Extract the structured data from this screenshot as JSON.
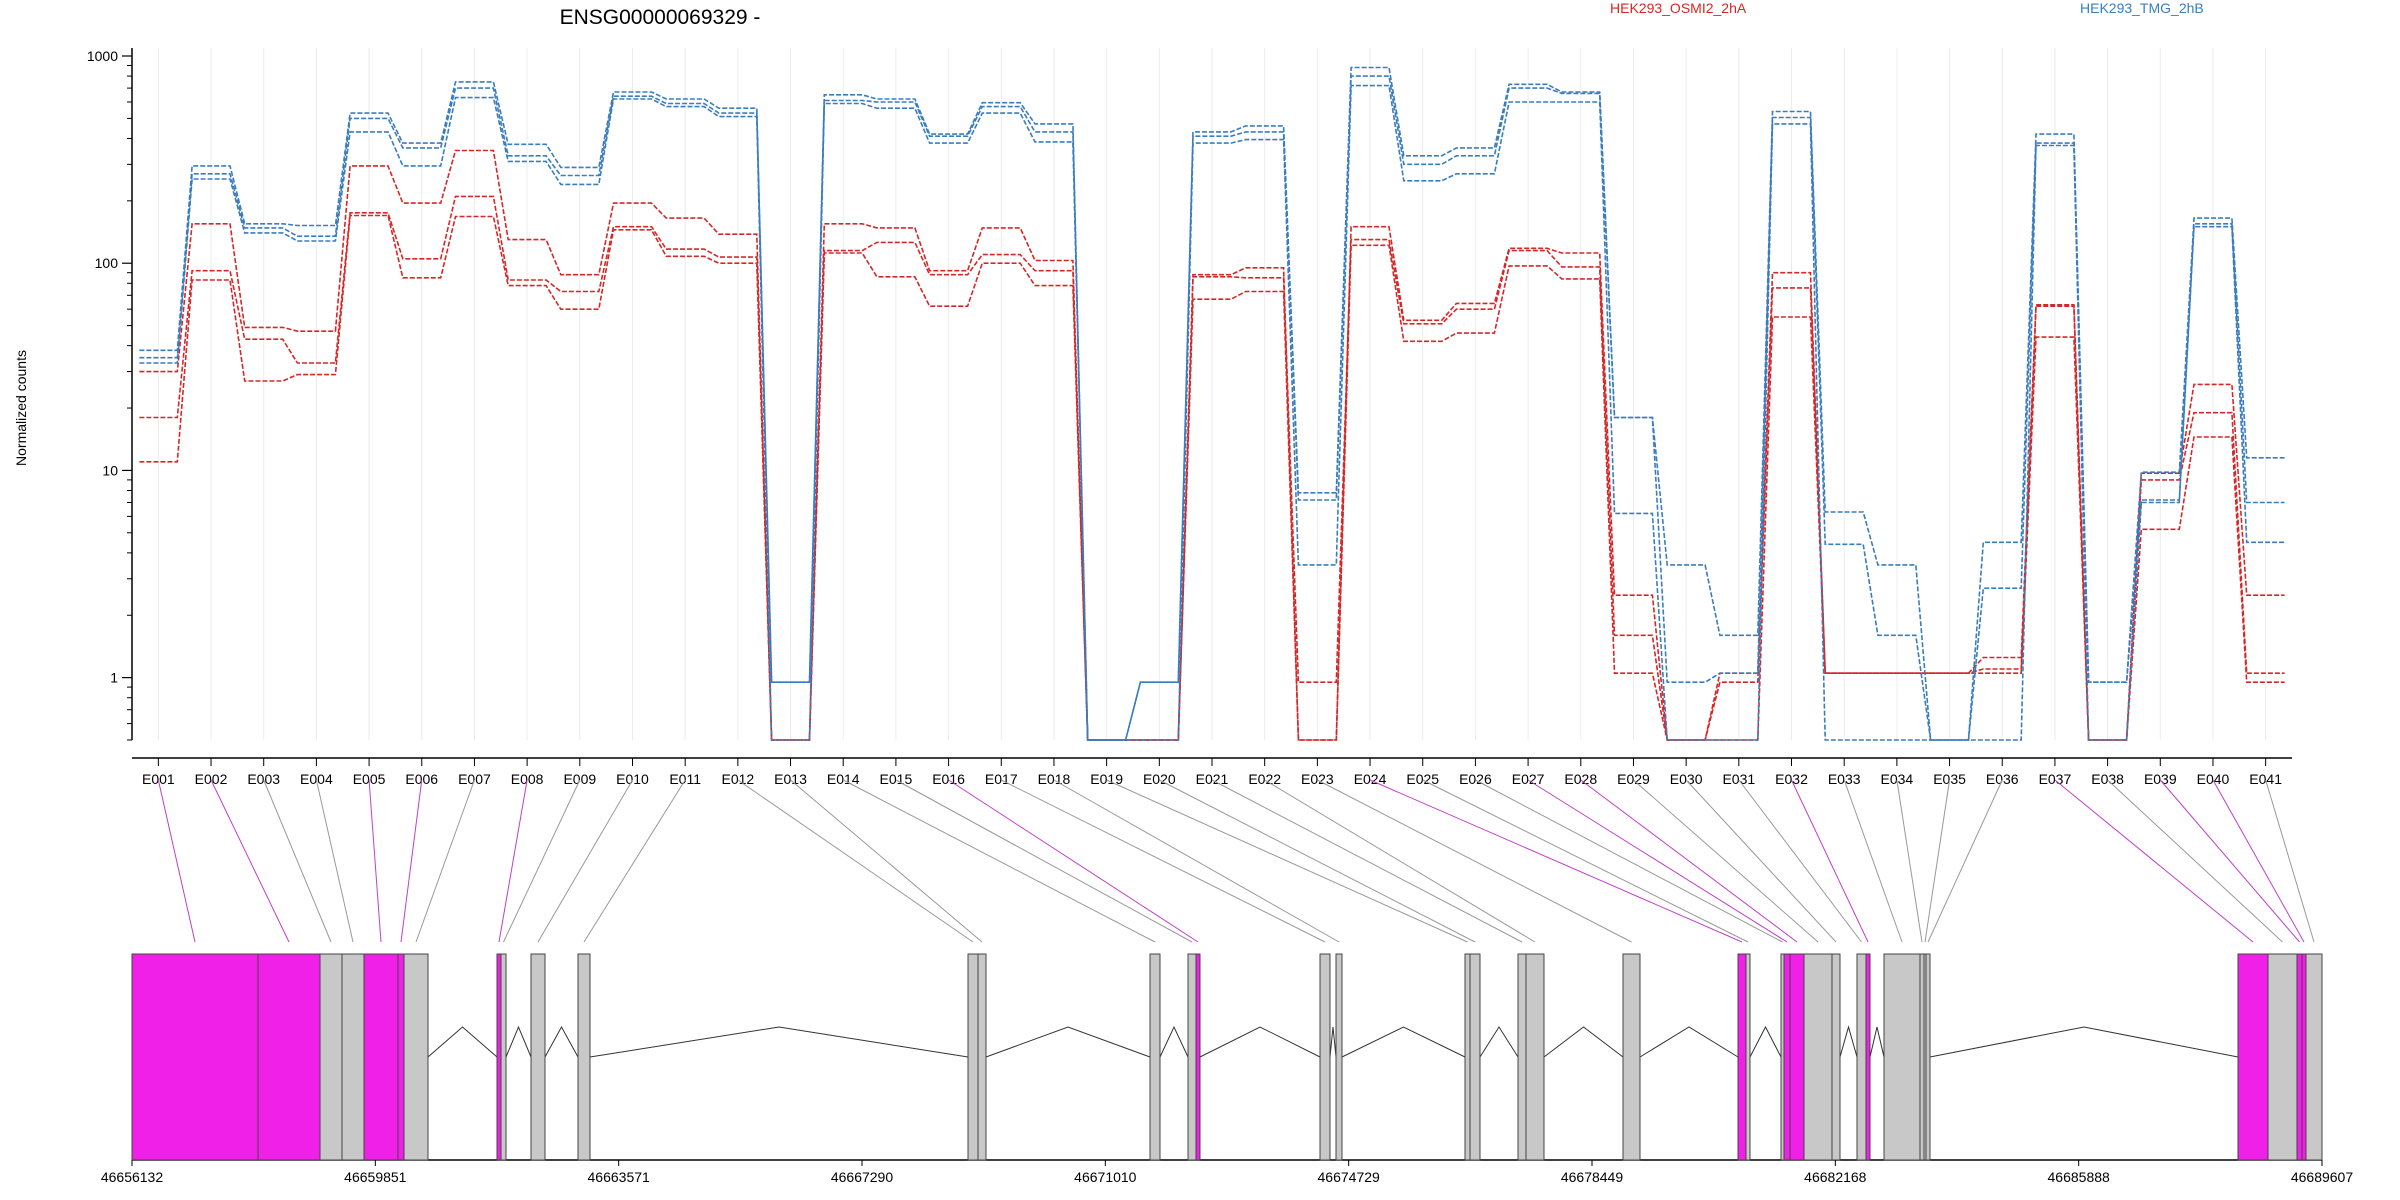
{
  "chart_data": {
    "type": "line",
    "title": "ENSG00000069329 -",
    "ylabel": "Normalized counts",
    "yscale": "log",
    "ylim": [
      0.5,
      1000
    ],
    "yticks": [
      1,
      10,
      100,
      1000
    ],
    "legend_placement": "top",
    "grid": true,
    "exons": [
      "E001",
      "E002",
      "E003",
      "E004",
      "E005",
      "E006",
      "E007",
      "E008",
      "E009",
      "E010",
      "E011",
      "E012",
      "E013",
      "E014",
      "E015",
      "E016",
      "E017",
      "E018",
      "E019",
      "E020",
      "E021",
      "E022",
      "E023",
      "E024",
      "E025",
      "E026",
      "E027",
      "E028",
      "E029",
      "E030",
      "E031",
      "E032",
      "E033",
      "E034",
      "E035",
      "E036",
      "E037",
      "E038",
      "E039",
      "E040",
      "E041"
    ],
    "series": [
      {
        "name": "HEK293_OSMI2_2hA",
        "color": "#d62728",
        "replicates": [
          [
            30,
            155,
            49,
            47,
            295,
            195,
            350,
            130,
            88,
            195,
            165,
            138,
            0.5,
            155,
            148,
            92,
            148,
            103,
            0.5,
            0.5,
            88,
            95,
            0.5,
            150,
            53,
            64,
            118,
            112,
            2.5,
            0.5,
            1.05,
            90,
            1.05,
            1.05,
            1.05,
            1.25,
            63,
            0.5,
            9.7,
            26,
            2.5
          ],
          [
            18,
            92,
            43,
            33,
            175,
            105,
            210,
            83,
            73,
            150,
            117,
            107,
            0.5,
            115,
            126,
            88,
            110,
            92,
            0.5,
            0.5,
            86,
            85,
            0.95,
            130,
            51,
            60,
            115,
            96,
            1.6,
            0.5,
            0.95,
            76,
            1.05,
            1.05,
            1.05,
            1.1,
            62,
            0.5,
            9.0,
            19,
            1.05
          ],
          [
            11,
            83,
            27,
            29,
            170,
            85,
            168,
            78,
            60,
            145,
            108,
            100,
            0.5,
            112,
            86,
            62,
            100,
            78,
            0.5,
            0.5,
            67,
            73,
            0.5,
            122,
            42,
            46,
            97,
            84,
            1.05,
            0.5,
            0.5,
            55,
            1.05,
            1.05,
            1.05,
            1.05,
            44,
            0.5,
            5.2,
            14.5,
            0.95
          ]
        ]
      },
      {
        "name": "HEK293_TMG_2hB",
        "color": "#3a7dbf",
        "replicates": [
          [
            38,
            295,
            155,
            152,
            530,
            380,
            750,
            375,
            290,
            670,
            620,
            560,
            0.95,
            650,
            620,
            420,
            595,
            470,
            0.5,
            0.95,
            430,
            460,
            7.8,
            880,
            330,
            360,
            730,
            670,
            18,
            3.5,
            1.6,
            540,
            6.3,
            3.5,
            0.5,
            4.5,
            420,
            0.95,
            9.8,
            165,
            11.5
          ],
          [
            35,
            270,
            148,
            135,
            500,
            360,
            700,
            330,
            265,
            640,
            590,
            530,
            0.95,
            610,
            600,
            410,
            570,
            430,
            0.5,
            0.95,
            410,
            430,
            7.2,
            800,
            300,
            330,
            700,
            660,
            18,
            0.95,
            1.05,
            505,
            4.4,
            1.6,
            0.5,
            2.7,
            380,
            0.95,
            7.2,
            155,
            7.0
          ],
          [
            33,
            255,
            140,
            128,
            430,
            295,
            630,
            310,
            240,
            620,
            570,
            510,
            0.5,
            590,
            560,
            380,
            530,
            385,
            0.5,
            0.5,
            380,
            395,
            3.5,
            720,
            250,
            270,
            600,
            600,
            6.2,
            0.5,
            0.5,
            470,
            0.5,
            0.5,
            0.5,
            0.5,
            370,
            0.5,
            7.0,
            150,
            4.5
          ]
        ]
      }
    ],
    "gene_model": {
      "coordinate_ticks": [
        "46656132",
        "46659851",
        "46663571",
        "46667290",
        "46671010",
        "46674729",
        "46678449",
        "46682168",
        "46685888",
        "46689607"
      ],
      "exon_colors": {
        "significant": "#f020e8",
        "other": "#c8c8c8"
      },
      "exon_highlight": [
        "E001",
        "E002",
        "E005",
        "E006",
        "E008",
        "E016",
        "E024",
        "E027",
        "E028",
        "E032",
        "E037",
        "E039",
        "E040"
      ]
    }
  }
}
